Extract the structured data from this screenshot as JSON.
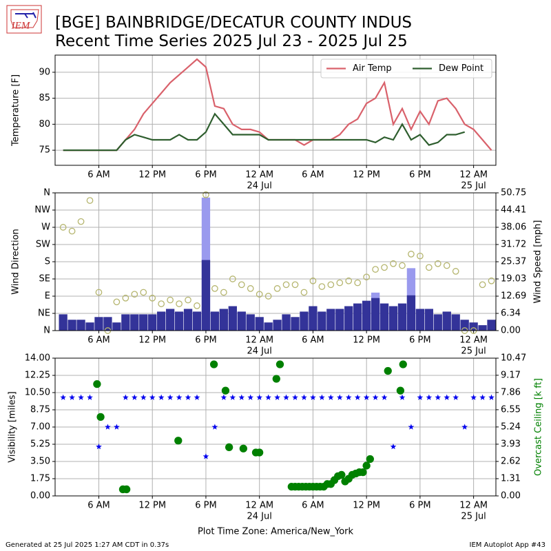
{
  "header": {
    "logo": "IEM",
    "title": "[BGE] BAINBRIDGE/DECATUR COUNTY INDUS",
    "subtitle": "Recent Time Series 2025 Jul 23 - 2025 Jul 25"
  },
  "footer": {
    "left": "Generated at 25 Jul 2025 1:27 AM CDT in 0.37s",
    "right": "IEM Autoplot App #43"
  },
  "chart_data": [
    {
      "type": "line",
      "ylabel": "Temperature [F]",
      "grid": true,
      "legend": "upper right",
      "xlim": [
        1.1,
        50.5
      ],
      "xticks": [
        {
          "value": 6,
          "label": "6 AM"
        },
        {
          "value": 12,
          "label": "12 PM"
        },
        {
          "value": 18,
          "label": "6 PM"
        },
        {
          "value": 24,
          "label": "12 AM",
          "sublabel": "24 Jul"
        },
        {
          "value": 30,
          "label": "6 AM"
        },
        {
          "value": 36,
          "label": "12 PM"
        },
        {
          "value": 42,
          "label": "6 PM"
        },
        {
          "value": 48,
          "label": "12 AM",
          "sublabel": "25 Jul"
        }
      ],
      "ylim": [
        72.1,
        93.3
      ],
      "yticks": [
        75,
        80,
        85,
        90
      ],
      "x": [
        2,
        3,
        4,
        5,
        6,
        7,
        8,
        9,
        10,
        11,
        12,
        13,
        14,
        15,
        16,
        17,
        18,
        19,
        20,
        21,
        22,
        23,
        24,
        25,
        26,
        27,
        28,
        29,
        30,
        31,
        32,
        33,
        34,
        35,
        36,
        37,
        38,
        39,
        40,
        41,
        42,
        43,
        44,
        45,
        46,
        47,
        48,
        49,
        50
      ],
      "series": [
        {
          "name": "Air Temp",
          "color": "#d9616b",
          "values": [
            75,
            75,
            75,
            75,
            75,
            75,
            75,
            77,
            79,
            82,
            84,
            86,
            88,
            89.5,
            91,
            92.5,
            91,
            83.5,
            83,
            80,
            79,
            79,
            78.5,
            77,
            77,
            77,
            77,
            76,
            77,
            77,
            77,
            78,
            80,
            81,
            84,
            85,
            88,
            80,
            83,
            79,
            82.5,
            80,
            84.5,
            85,
            83,
            80,
            79,
            77,
            75
          ]
        },
        {
          "name": "Dew Point",
          "color": "#2e5e2e",
          "values": [
            75,
            75,
            75,
            75,
            75,
            75,
            75,
            77,
            78,
            77.5,
            77,
            77,
            77,
            78,
            77,
            77,
            78.5,
            82,
            80,
            78,
            78,
            78,
            78,
            77,
            77,
            77,
            77,
            77,
            77,
            77,
            77,
            77,
            77,
            77,
            77,
            76.5,
            77.5,
            77,
            80,
            77,
            78,
            76,
            76.5,
            78,
            78,
            78.5,
            null,
            null,
            null
          ]
        }
      ]
    },
    {
      "type": "bar",
      "ylabel": "Wind Direction",
      "y2label": "Wind Speed [mph]",
      "grid": true,
      "xlim": [
        1.1,
        50.5
      ],
      "xticks": [
        {
          "value": 6,
          "label": "6 AM"
        },
        {
          "value": 12,
          "label": "12 PM"
        },
        {
          "value": 18,
          "label": "6 PM"
        },
        {
          "value": 24,
          "label": "12 AM",
          "sublabel": "24 Jul"
        },
        {
          "value": 30,
          "label": "6 AM"
        },
        {
          "value": 36,
          "label": "12 PM"
        },
        {
          "value": 42,
          "label": "6 PM"
        },
        {
          "value": 48,
          "label": "12 AM",
          "sublabel": "25 Jul"
        }
      ],
      "ylim": [
        0,
        360
      ],
      "yticks": [
        {
          "value": 0,
          "label": "N"
        },
        {
          "value": 45,
          "label": "NE"
        },
        {
          "value": 90,
          "label": "E"
        },
        {
          "value": 135,
          "label": "SE"
        },
        {
          "value": 180,
          "label": "S"
        },
        {
          "value": 225,
          "label": "SW"
        },
        {
          "value": 270,
          "label": "W"
        },
        {
          "value": 315,
          "label": "NW"
        },
        {
          "value": 360,
          "label": "N"
        }
      ],
      "y2lim": [
        0,
        50.75
      ],
      "y2ticks": [
        {
          "value": 0,
          "label": "0.00"
        },
        6.34,
        12.69,
        19.03,
        25.37,
        31.72,
        38.06,
        44.41,
        50.75
      ],
      "x": [
        2,
        3,
        4,
        5,
        6,
        7,
        8,
        9,
        10,
        11,
        12,
        13,
        14,
        15,
        16,
        17,
        18,
        19,
        20,
        21,
        22,
        23,
        24,
        25,
        26,
        27,
        28,
        29,
        30,
        31,
        32,
        33,
        34,
        35,
        36,
        37,
        38,
        39,
        40,
        41,
        42,
        43,
        44,
        45,
        46,
        47,
        48,
        49,
        50
      ],
      "series": [
        {
          "mark": "bar",
          "axis": "y2",
          "color": "#9a9aee",
          "values": [
            null,
            null,
            null,
            null,
            null,
            null,
            null,
            null,
            null,
            null,
            null,
            null,
            null,
            null,
            null,
            null,
            49,
            null,
            null,
            null,
            null,
            null,
            null,
            null,
            null,
            null,
            null,
            null,
            null,
            null,
            null,
            null,
            null,
            null,
            null,
            14,
            null,
            null,
            null,
            23,
            null,
            null,
            null,
            null,
            null,
            null,
            null,
            null,
            null
          ]
        },
        {
          "mark": "bar",
          "axis": "y2",
          "color": "#333399",
          "values": [
            6,
            4,
            4,
            3,
            5,
            5,
            3,
            6,
            6,
            6,
            6,
            7,
            8,
            7,
            8,
            7,
            26,
            7,
            8,
            9,
            7,
            6,
            5,
            3,
            4,
            6,
            5,
            7,
            9,
            7,
            8,
            8,
            9,
            10,
            11,
            12,
            10,
            9,
            10,
            13,
            8,
            8,
            6,
            7,
            6,
            4,
            3,
            2,
            4
          ]
        },
        {
          "mark": "circle",
          "filled": false,
          "color": "#b5b56e",
          "values": [
            270,
            260,
            285,
            340,
            100,
            0,
            75,
            85,
            95,
            100,
            85,
            70,
            80,
            70,
            80,
            65,
            355,
            110,
            100,
            135,
            120,
            110,
            95,
            90,
            110,
            120,
            120,
            100,
            130,
            115,
            120,
            125,
            130,
            125,
            140,
            160,
            165,
            175,
            170,
            200,
            195,
            165,
            175,
            170,
            155,
            0,
            0,
            120,
            130
          ]
        }
      ]
    },
    {
      "type": "scatter",
      "ylabel": "Visibility [miles]",
      "y2label": "Overcast Ceiling [k ft]",
      "y2color": "#008000",
      "xlabel": "Plot Time Zone: America/New_York",
      "grid": true,
      "xlim": [
        1.1,
        50.5
      ],
      "xticks": [
        {
          "value": 6,
          "label": "6 AM"
        },
        {
          "value": 12,
          "label": "12 PM"
        },
        {
          "value": 18,
          "label": "6 PM"
        },
        {
          "value": 24,
          "label": "12 AM",
          "sublabel": "24 Jul"
        },
        {
          "value": 30,
          "label": "6 AM"
        },
        {
          "value": 36,
          "label": "12 PM"
        },
        {
          "value": 42,
          "label": "6 PM"
        },
        {
          "value": 48,
          "label": "12 AM",
          "sublabel": "25 Jul"
        }
      ],
      "ylim": [
        0,
        14
      ],
      "yticks": [
        {
          "value": 0,
          "label": "0.00"
        },
        1.75,
        {
          "value": 3.5,
          "label": "3.50"
        },
        5.25,
        {
          "value": 7,
          "label": "7.00"
        },
        8.75,
        {
          "value": 10.5,
          "label": "10.50"
        },
        12.25,
        {
          "value": 14,
          "label": "14.00"
        }
      ],
      "y2lim": [
        0,
        10.47
      ],
      "y2ticks": [
        {
          "value": 0,
          "label": "0.00"
        },
        1.31,
        2.62,
        3.93,
        5.24,
        6.55,
        7.86,
        9.17,
        10.47
      ],
      "x": [
        2,
        3,
        4,
        5,
        6,
        7,
        8,
        9,
        10,
        11,
        12,
        13,
        14,
        15,
        16,
        17,
        18,
        19,
        20,
        21,
        22,
        23,
        24,
        25,
        26,
        27,
        28,
        29,
        30,
        31,
        32,
        33,
        34,
        35,
        36,
        37,
        38,
        39,
        40,
        41,
        42,
        43,
        44,
        45,
        46,
        47,
        48,
        49,
        50
      ],
      "series": [
        {
          "mark": "star",
          "color": "#0000ee",
          "values": [
            10,
            10,
            10,
            10,
            5,
            7,
            7,
            10,
            10,
            10,
            10,
            10,
            10,
            10,
            10,
            10,
            4,
            7,
            10,
            10,
            10,
            10,
            10,
            10,
            10,
            10,
            10,
            10,
            10,
            10,
            10,
            10,
            10,
            10,
            10,
            10,
            10,
            5,
            10,
            7,
            10,
            10,
            10,
            10,
            10,
            7,
            10,
            10,
            10
          ]
        },
        {
          "mark": "circle",
          "filled": true,
          "axis": "y2",
          "color": "#008000",
          "x": [
            5.8,
            6.2,
            8.7,
            9.1,
            14.9,
            18.9,
            20.2,
            20.6,
            22.2,
            23.6,
            24,
            25.9,
            26.3,
            27.6,
            28,
            28.4,
            28.8,
            29.2,
            29.6,
            30,
            30.4,
            30.8,
            31.2,
            31.6,
            32,
            32.4,
            32.8,
            33.2,
            33.6,
            34,
            34.4,
            34.8,
            35.2,
            35.6,
            36,
            36.4,
            38.4,
            39.8,
            40.1
          ],
          "values": [
            8.5,
            6,
            0.5,
            0.5,
            4.2,
            10,
            8,
            3.7,
            3.6,
            3.3,
            3.3,
            8.9,
            10,
            0.7,
            0.7,
            0.7,
            0.7,
            0.7,
            0.7,
            0.7,
            0.7,
            0.7,
            0.7,
            0.9,
            0.9,
            1.2,
            1.5,
            1.6,
            1.1,
            1.3,
            1.6,
            1.7,
            1.8,
            1.8,
            2.3,
            2.8,
            9.5,
            8,
            10
          ]
        }
      ]
    }
  ]
}
